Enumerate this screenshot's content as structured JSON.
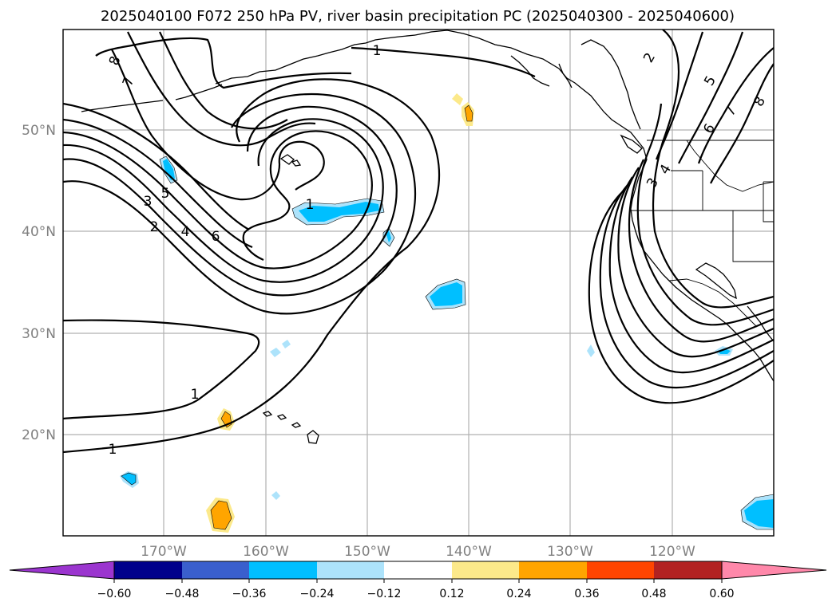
{
  "title": "2025040100 F072 250 hPa PV, river basin precipitation PC (2025040300 - 2025040600)",
  "longitude_labels": [
    "170°W",
    "160°W",
    "150°W",
    "140°W",
    "130°W",
    "120°W"
  ],
  "latitude_labels": [
    "20°N",
    "30°N",
    "40°N",
    "50°N"
  ],
  "contour_labels": [
    "1",
    "1",
    "1",
    "1",
    "2",
    "2",
    "3",
    "3",
    "4",
    "4",
    "5",
    "5",
    "6",
    "6",
    "7",
    "7",
    "8",
    "8"
  ],
  "colorbar": {
    "ticks": [
      "−0.60",
      "−0.48",
      "−0.36",
      "−0.24",
      "−0.12",
      "0.12",
      "0.24",
      "0.36",
      "0.48",
      "0.60"
    ],
    "colors": [
      "#9b35cf",
      "#00008b",
      "#3a5fcd",
      "#00bfff",
      "#ade3fb",
      "#ffffff",
      "#fce98a",
      "#ffa500",
      "#ff4500",
      "#b22222",
      "#ff88aa"
    ]
  },
  "fill_colors": {
    "light_blue": "#ade3fb",
    "blue": "#00bfff",
    "light_yellow": "#fce98a",
    "orange": "#ffa500"
  }
}
